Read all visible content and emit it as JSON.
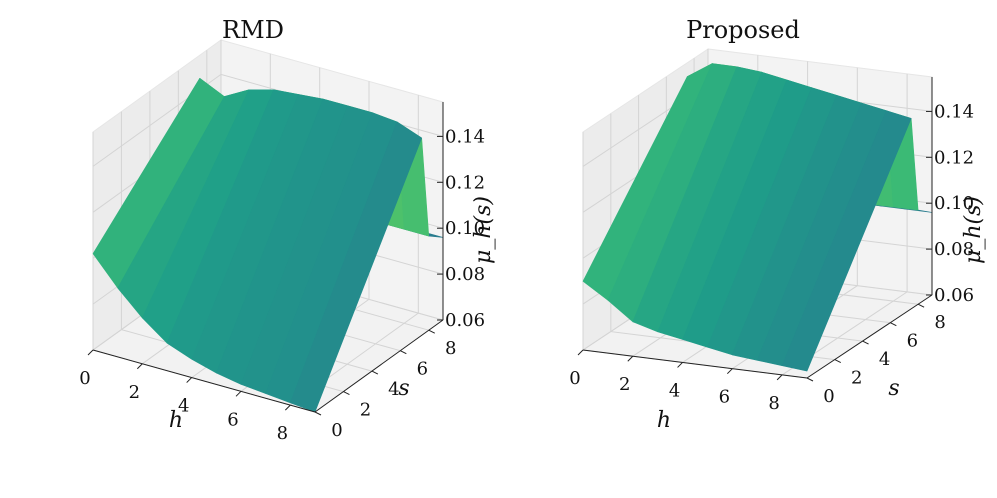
{
  "chart_data": [
    {
      "type": "surface3d",
      "title": "RMD",
      "xlabel": "h",
      "ylabel": "s",
      "zlabel": "μ_h(s)",
      "xlim": [
        0,
        9
      ],
      "ylim": [
        0,
        9
      ],
      "zlim": [
        0.06,
        0.155
      ],
      "x_ticks": [
        "0",
        "2",
        "4",
        "6",
        "8"
      ],
      "y_ticks": [
        "0",
        "2",
        "4",
        "6",
        "8"
      ],
      "z_ticks": [
        "0.06",
        "0.08",
        "0.10",
        "0.12",
        "0.14"
      ],
      "colormap": "viridis",
      "h": [
        0,
        1,
        2,
        3,
        4,
        5,
        6,
        7,
        8,
        9
      ],
      "s": [
        0,
        7.5,
        8,
        9
      ],
      "z": [
        [
          0.102,
          0.145,
          0.099,
          0.096
        ],
        [
          0.09,
          0.14,
          0.1,
          0.096
        ],
        [
          0.08,
          0.146,
          0.1,
          0.096
        ],
        [
          0.072,
          0.149,
          0.1,
          0.096
        ],
        [
          0.068,
          0.15,
          0.101,
          0.096
        ],
        [
          0.065,
          0.151,
          0.101,
          0.096
        ],
        [
          0.063,
          0.151,
          0.101,
          0.096
        ],
        [
          0.062,
          0.151,
          0.101,
          0.096
        ],
        [
          0.061,
          0.15,
          0.101,
          0.096
        ],
        [
          0.06,
          0.146,
          0.101,
          0.096
        ]
      ]
    },
    {
      "type": "surface3d",
      "title": "Proposed",
      "xlabel": "h",
      "ylabel": "s",
      "zlabel": "μ_h(s)",
      "xlim": [
        0,
        9
      ],
      "ylim": [
        0,
        9
      ],
      "zlim": [
        0.06,
        0.155
      ],
      "x_ticks": [
        "0",
        "2",
        "4",
        "6",
        "8"
      ],
      "y_ticks": [
        "0",
        "2",
        "4",
        "6",
        "8"
      ],
      "z_ticks": [
        "0.06",
        "0.08",
        "0.10",
        "0.12",
        "0.14"
      ],
      "colormap": "viridis",
      "h": [
        0,
        1,
        2,
        3,
        4,
        5,
        6,
        7,
        8,
        9
      ],
      "s": [
        0,
        7.5,
        8,
        9
      ],
      "z": [
        [
          0.09,
          0.149,
          0.099,
          0.096
        ],
        [
          0.083,
          0.156,
          0.1,
          0.096
        ],
        [
          0.075,
          0.156,
          0.1,
          0.096
        ],
        [
          0.072,
          0.155,
          0.101,
          0.096
        ],
        [
          0.07,
          0.153,
          0.101,
          0.096
        ],
        [
          0.068,
          0.151,
          0.101,
          0.096
        ],
        [
          0.066,
          0.149,
          0.101,
          0.096
        ],
        [
          0.065,
          0.147,
          0.101,
          0.096
        ],
        [
          0.064,
          0.145,
          0.101,
          0.096
        ],
        [
          0.063,
          0.143,
          0.101,
          0.096
        ]
      ]
    }
  ]
}
